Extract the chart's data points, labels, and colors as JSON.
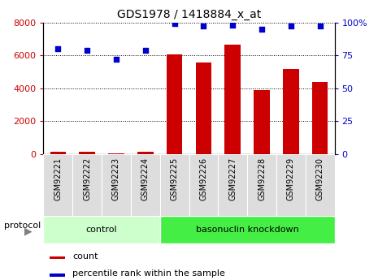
{
  "title": "GDS1978 / 1418884_x_at",
  "samples": [
    "GSM92221",
    "GSM92222",
    "GSM92223",
    "GSM92224",
    "GSM92225",
    "GSM92226",
    "GSM92227",
    "GSM92228",
    "GSM92229",
    "GSM92230"
  ],
  "bar_values": [
    120,
    130,
    30,
    130,
    6050,
    5550,
    6650,
    3900,
    5150,
    4400
  ],
  "dot_values": [
    80,
    79,
    72,
    79,
    99,
    97,
    98,
    95,
    97,
    97
  ],
  "groups": [
    {
      "label": "control",
      "start": 0,
      "end": 3
    },
    {
      "label": "basonuclin knockdown",
      "start": 4,
      "end": 9
    }
  ],
  "bar_color": "#cc0000",
  "dot_color": "#0000cc",
  "ylim_left": [
    0,
    8000
  ],
  "ylim_right": [
    0,
    100
  ],
  "yticks_left": [
    0,
    2000,
    4000,
    6000,
    8000
  ],
  "yticks_right": [
    0,
    25,
    50,
    75,
    100
  ],
  "grid_values": [
    2000,
    4000,
    6000,
    8000
  ],
  "protocol_label": "protocol",
  "legend_count": "count",
  "legend_percentile": "percentile rank within the sample",
  "background_color": "#ffffff",
  "group_bg_color_light": "#ccffcc",
  "group_bg_color_dark": "#44ee44",
  "tick_label_color_left": "#cc0000",
  "tick_label_color_right": "#0000cc",
  "bar_width": 0.55,
  "sample_box_color": "#dddddd"
}
